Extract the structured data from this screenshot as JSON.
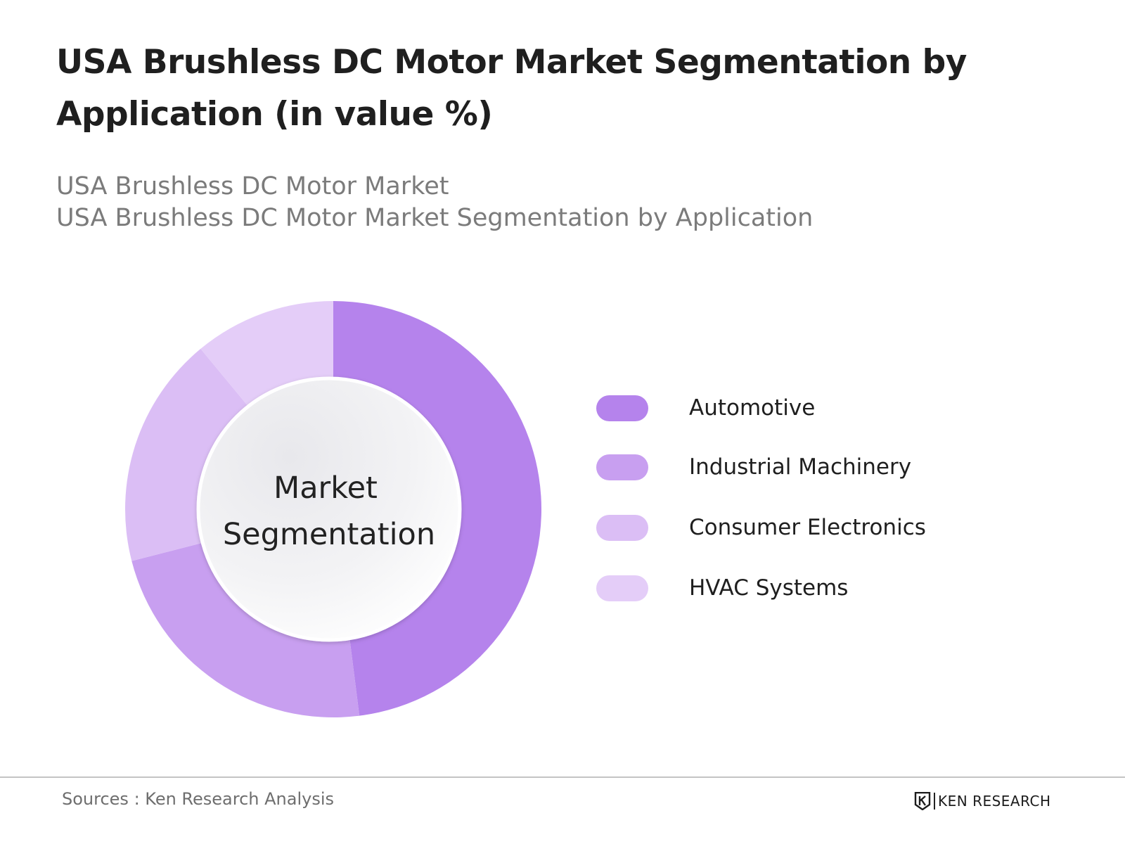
{
  "header": {
    "title": "USA Brushless DC Motor Market Segmentation by Application (in value %)",
    "subtitle_line1": "USA Brushless DC Motor Market",
    "subtitle_line2": "USA Brushless DC Motor Market Segmentation by Application"
  },
  "chart_data": {
    "type": "pie",
    "variant": "donut",
    "center_label_line1": "Market",
    "center_label_line2": "Segmentation",
    "categories": [
      "Automotive",
      "Industrial Machinery",
      "Consumer Electronics",
      "HVAC Systems"
    ],
    "values": [
      48,
      23,
      18,
      11
    ],
    "colors": [
      "#b583ec",
      "#c89ff0",
      "#dbbef5",
      "#e4cdf8"
    ],
    "legend_position": "right"
  },
  "footer": {
    "sources": "Sources : Ken Research Analysis",
    "logo_text": "KEN RESEARCH"
  }
}
